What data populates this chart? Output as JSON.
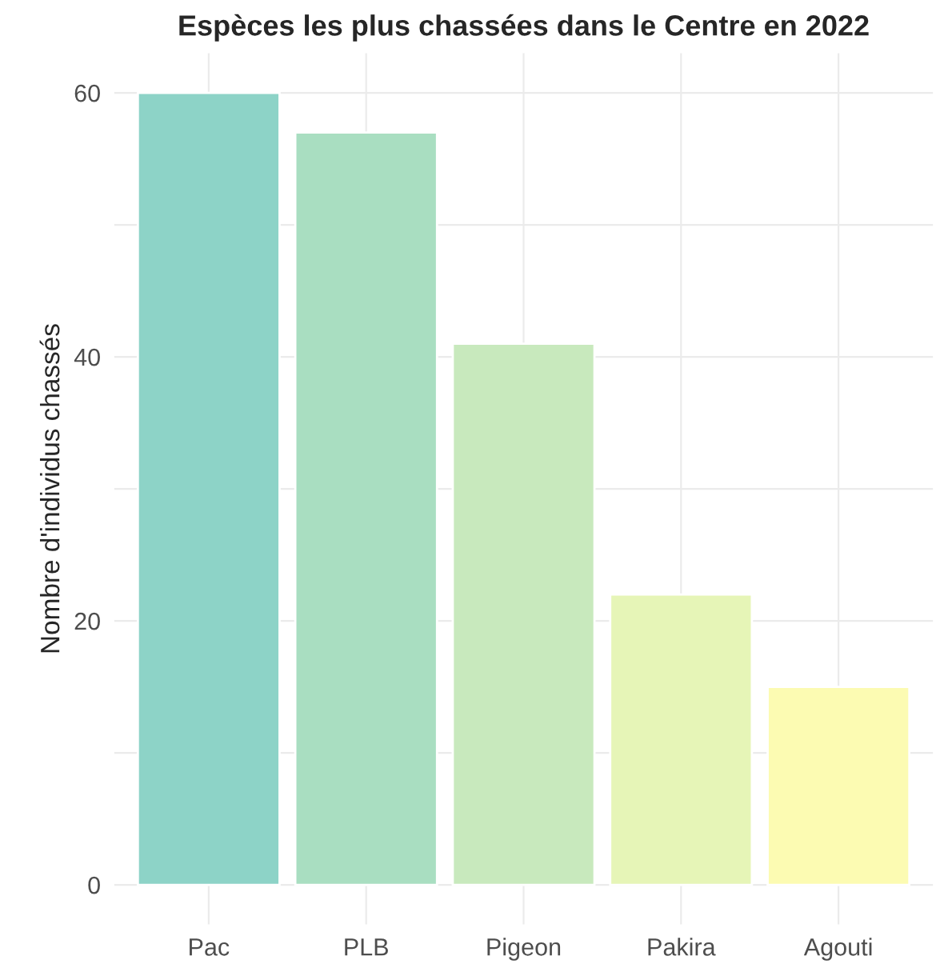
{
  "chart_data": {
    "type": "bar",
    "title": "Espèces les plus chassées dans le Centre en 2022",
    "ylabel": "Nombre d'individus chassés",
    "categories": [
      "Pac",
      "PLB",
      "Pigeon",
      "Pakira",
      "Agouti"
    ],
    "values": [
      60,
      57,
      41,
      22,
      15
    ],
    "colors": [
      "#8dd3c7",
      "#a9dec1",
      "#c8e9bd",
      "#e6f5b7",
      "#fcfbb2"
    ],
    "ylim": [
      -3,
      63
    ],
    "yticks": [
      0,
      {
        "value": 10,
        "label": null
      },
      20,
      {
        "value": 30,
        "label": null
      },
      40,
      {
        "value": 50,
        "label": null
      },
      60
    ],
    "grid": true,
    "legend": false
  }
}
